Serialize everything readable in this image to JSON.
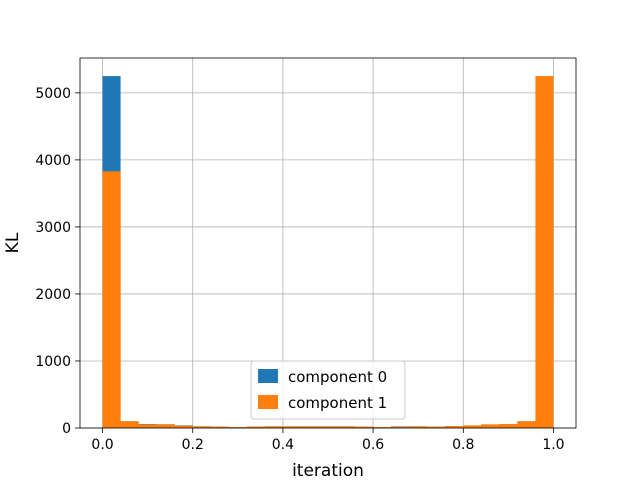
{
  "chart_data": {
    "type": "bar",
    "title": "",
    "xlabel": "iteration",
    "ylabel": "KL",
    "xlim": [
      -0.05,
      1.05
    ],
    "ylim": [
      0,
      5520
    ],
    "xticks": [
      0.0,
      0.2,
      0.4,
      0.6,
      0.8,
      1.0
    ],
    "xtick_labels": [
      "0.0",
      "0.2",
      "0.4",
      "0.6",
      "0.8",
      "1.0"
    ],
    "yticks": [
      0,
      1000,
      2000,
      3000,
      4000,
      5000
    ],
    "ytick_labels": [
      "0",
      "1000",
      "2000",
      "3000",
      "4000",
      "5000"
    ],
    "grid": true,
    "legend_position": "lower-center",
    "bin_edges": [
      0.0,
      0.04,
      0.08,
      0.12,
      0.16,
      0.2,
      0.24,
      0.28,
      0.32,
      0.36,
      0.4,
      0.44,
      0.48,
      0.52,
      0.56,
      0.6,
      0.64,
      0.68,
      0.72,
      0.76,
      0.8,
      0.84,
      0.88,
      0.92,
      0.96,
      1.0
    ],
    "series": [
      {
        "name": "component 0",
        "color": "#1f77b4",
        "values": [
          5250,
          100,
          60,
          55,
          40,
          25,
          20,
          15,
          20,
          25,
          25,
          25,
          25,
          25,
          20,
          15,
          25,
          25,
          20,
          30,
          35,
          50,
          55,
          100,
          40
        ]
      },
      {
        "name": "component 1",
        "color": "#ff7f0e",
        "values": [
          3830,
          100,
          55,
          55,
          35,
          25,
          20,
          15,
          20,
          25,
          25,
          25,
          25,
          25,
          20,
          15,
          20,
          25,
          20,
          30,
          40,
          55,
          60,
          100,
          5250
        ]
      }
    ]
  }
}
